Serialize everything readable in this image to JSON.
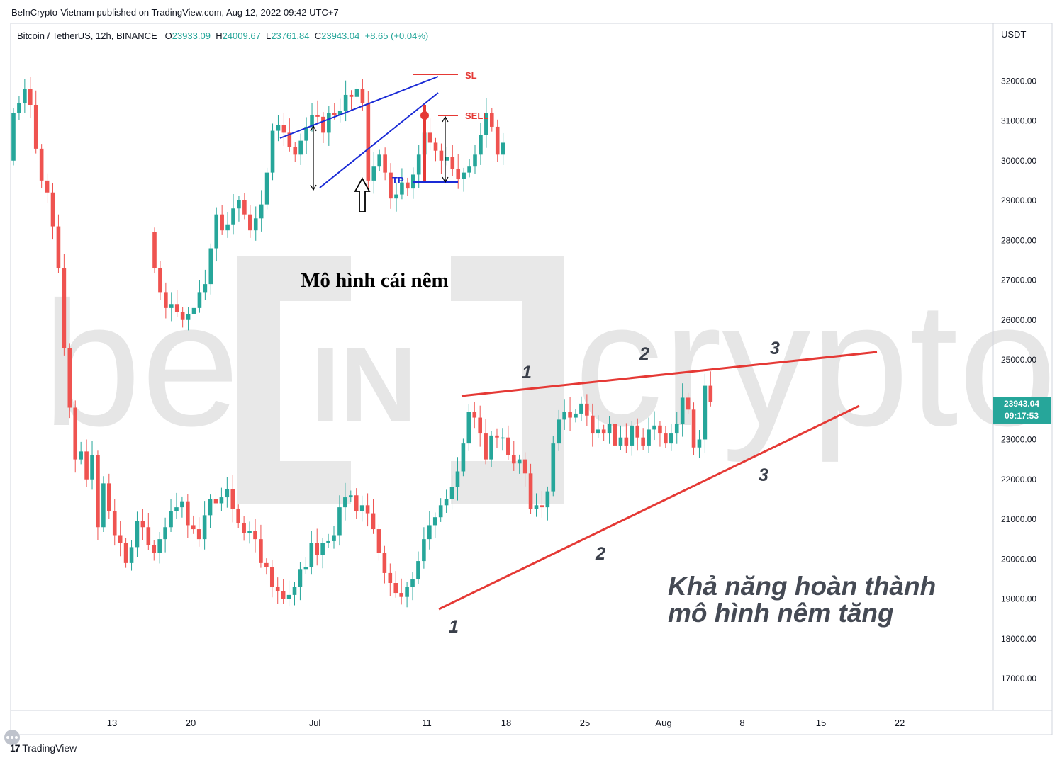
{
  "header": {
    "publisher": "BeInCrypto-Vietnam published on TradingView.com, Aug 12, 2022 09:42 UTC+7",
    "symbol": "Bitcoin / TetherUS, 12h, BINANCE",
    "o_label": "O",
    "o_value": "23933.09",
    "h_label": "H",
    "h_value": "24009.67",
    "l_label": "L",
    "l_value": "23761.84",
    "c_label": "C",
    "c_value": "23943.04",
    "change": "+8.65 (+0.04%)"
  },
  "price_axis": {
    "currency": "USDT",
    "last_price": "23943.04",
    "countdown": "09:17:53"
  },
  "footer": {
    "brand": "TradingView"
  },
  "colors": {
    "up": "#26a69a",
    "down": "#ef5350",
    "annot_red": "#e53935",
    "annot_blue": "#1a2bd6",
    "watermark": "#e6e6e6"
  },
  "chart_data": {
    "type": "candlestick",
    "title": "",
    "x_ticks": [
      "13",
      "20",
      "Jul",
      "11",
      "18",
      "25",
      "Aug",
      "8",
      "15",
      "22"
    ],
    "y_ticks": [
      "17000.00",
      "18000.00",
      "19000.00",
      "20000.00",
      "21000.00",
      "22000.00",
      "23000.00",
      "24000.00",
      "25000.00",
      "26000.00",
      "27000.00",
      "28000.00",
      "29000.00",
      "30000.00",
      "31000.00",
      "32000.00"
    ],
    "ylim": [
      16200,
      33600
    ],
    "watermark": "beincrypto",
    "main_series": {
      "start": "2022-06-06",
      "interval": "12h",
      "closes": [
        31200,
        31450,
        31800,
        31400,
        30300,
        29500,
        29200,
        28350,
        27300,
        25300,
        23800,
        22500,
        22700,
        22000,
        22600,
        20800,
        21900,
        21200,
        20600,
        20400,
        19900,
        20300,
        20950,
        20800,
        20350,
        20150,
        20500,
        20800,
        21200,
        21300,
        21450,
        20850,
        20750,
        20500,
        21100,
        21500,
        21400,
        21550,
        21750,
        21250,
        20900,
        20650,
        20700,
        20500,
        19900,
        19800,
        19300,
        19200,
        19000,
        19100,
        19300,
        19750,
        19800,
        20400,
        20100,
        20400,
        20450,
        20600,
        21300,
        21550,
        21600,
        21200,
        21350,
        21150,
        20750,
        20150,
        19650,
        19400,
        19150,
        19050,
        19300,
        19500,
        19950,
        20500,
        20850,
        21050,
        21350,
        21500,
        21800,
        22200,
        22900,
        23700,
        23550,
        23150,
        22500,
        23100,
        23050,
        23050,
        22600,
        22400,
        22500,
        22150,
        21250,
        21350,
        21300,
        21700,
        22900,
        23500,
        23700,
        23550,
        23650,
        23900,
        23600,
        23150,
        23250,
        23150,
        23400,
        22850,
        23050,
        22850,
        23350,
        23050,
        22850,
        23250,
        23350,
        23150,
        22900,
        23150,
        23400,
        24050,
        23750,
        22800,
        23000,
        24350,
        23950
      ]
    },
    "inset_series": {
      "note": "earlier wedge example, same price axis",
      "closes": [
        27300,
        26700,
        26300,
        26400,
        26200,
        26000,
        26150,
        26300,
        26700,
        26900,
        27800,
        28650,
        28250,
        28400,
        28800,
        29000,
        28650,
        28250,
        28550,
        28900,
        29700,
        30750,
        30900,
        30700,
        30350,
        30150,
        30500,
        30850,
        31150,
        31100,
        30700,
        31200,
        31150,
        31250,
        31650,
        31600,
        31800,
        31450,
        29500,
        29850,
        30150,
        29700,
        29050,
        29150,
        29450,
        29300,
        29650,
        30150,
        30700,
        30450,
        30250,
        30000,
        30100,
        29800,
        29550,
        29700,
        29850,
        30150,
        30650,
        31200,
        30850,
        30150,
        30450
      ]
    },
    "annotations": {
      "inset_title": "Mô hình cái nêm",
      "sl_label": "SL",
      "sell_label": "SELL",
      "tp_label": "TP",
      "caption_line1": "Khả năng hoàn thành",
      "caption_line2": "mô hình nêm tăng",
      "touch_labels": [
        "1",
        "2",
        "3",
        "1",
        "2",
        "3"
      ]
    }
  }
}
